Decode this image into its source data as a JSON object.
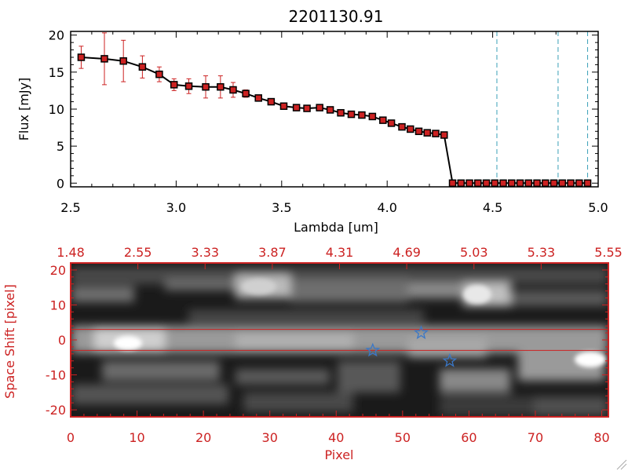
{
  "chart_data": [
    {
      "type": "line",
      "title": "2201130.91",
      "xlabel": "Lambda [um]",
      "ylabel": "Flux [mJy]",
      "xlim": [
        2.5,
        5.0
      ],
      "ylim": [
        -0.5,
        20.5
      ],
      "xticks": [
        "2.5",
        "3.0",
        "3.5",
        "4.0",
        "4.5",
        "5.0"
      ],
      "yticks": [
        "0",
        "5",
        "10",
        "15",
        "20"
      ],
      "grid": false,
      "series": [
        {
          "line_color": "#000000",
          "marker_color": "#cc2222",
          "x": [
            2.55,
            2.66,
            2.75,
            2.84,
            2.92,
            2.99,
            3.06,
            3.14,
            3.21,
            3.27,
            3.33,
            3.39,
            3.45,
            3.51,
            3.57,
            3.62,
            3.68,
            3.73,
            3.78,
            3.83,
            3.88,
            3.93,
            3.98,
            4.02,
            4.07,
            4.11,
            4.15,
            4.19,
            4.23,
            4.27,
            4.31,
            4.35,
            4.39,
            4.43,
            4.47,
            4.51,
            4.55,
            4.59,
            4.63,
            4.67,
            4.71,
            4.75,
            4.79,
            4.83,
            4.87,
            4.91,
            4.95
          ],
          "y": [
            17.0,
            16.8,
            16.5,
            15.7,
            14.7,
            13.3,
            13.1,
            13.0,
            13.0,
            12.6,
            12.1,
            11.5,
            11.0,
            10.4,
            10.2,
            10.1,
            10.2,
            9.9,
            9.5,
            9.3,
            9.2,
            9.0,
            8.5,
            8.1,
            7.6,
            7.3,
            7.0,
            6.8,
            6.7,
            6.5,
            0.0,
            0.0,
            0.0,
            0.0,
            0.0,
            0.0,
            0.0,
            0.0,
            0.0,
            0.0,
            0.0,
            0.0,
            0.0,
            0.0,
            0.0,
            0.0,
            0.0
          ],
          "yerr": [
            1.5,
            3.5,
            2.8,
            1.5,
            1.0,
            0.8,
            1.0,
            1.5,
            1.5,
            1.0,
            0.5,
            0,
            0,
            0,
            0,
            0,
            0,
            0,
            0,
            0,
            0,
            0,
            0,
            0,
            0,
            0,
            0,
            0,
            0,
            0,
            0,
            0,
            0,
            0,
            0,
            0,
            0,
            0,
            0,
            0,
            0,
            0,
            0,
            0,
            0,
            0,
            0
          ]
        }
      ],
      "vlines": [
        4.52,
        4.81,
        4.95
      ],
      "vline_color": "#3aa0b8"
    },
    {
      "type": "heatmap",
      "xlabel": "Pixel",
      "ylabel": "Space Shift [pixel]",
      "xlim": [
        0,
        81
      ],
      "ylim": [
        -22,
        22
      ],
      "xticks": [
        "0",
        "10",
        "20",
        "30",
        "40",
        "50",
        "60",
        "70",
        "80"
      ],
      "yticks": [
        "-20",
        "-10",
        "0",
        "10",
        "20"
      ],
      "top_axis_ticks": [
        "1.48",
        "2.55",
        "3.33",
        "3.87",
        "4.31",
        "4.69",
        "5.03",
        "5.33",
        "5.55"
      ],
      "axis_color": "#cc2222",
      "hlines": [
        3,
        -3
      ],
      "stars": [
        {
          "x": 45.5,
          "y": -3
        },
        {
          "x": 52.8,
          "y": 2
        },
        {
          "x": 57.1,
          "y": -6
        }
      ],
      "star_color": "#3a78c8"
    }
  ]
}
